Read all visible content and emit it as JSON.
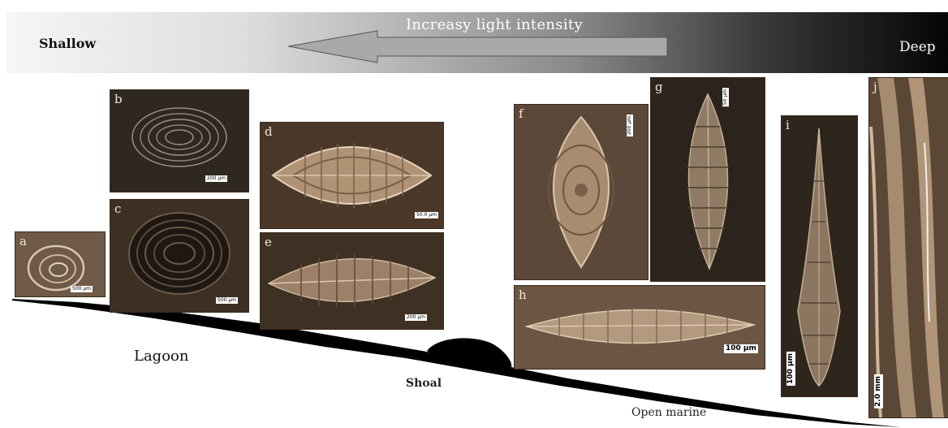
{
  "banner": {
    "left_label": "Shallow",
    "right_label": "Deep",
    "arrow_label": "Increasy light intensity"
  },
  "environments": {
    "lagoon": "Lagoon",
    "shoal": "Shoal",
    "open_marine": "Open marine"
  },
  "plates": [
    {
      "id": "a",
      "label": "a",
      "scale": "500 μm"
    },
    {
      "id": "b",
      "label": "b",
      "scale": "200 μm"
    },
    {
      "id": "c",
      "label": "c",
      "scale": "500 μm"
    },
    {
      "id": "d",
      "label": "d",
      "scale": "50.0 μm"
    },
    {
      "id": "e",
      "label": "e",
      "scale": "200 μm"
    },
    {
      "id": "f",
      "label": "f",
      "scale": "200 μm"
    },
    {
      "id": "g",
      "label": "g",
      "scale": "50 μm"
    },
    {
      "id": "h",
      "label": "h",
      "scale": "100 μm"
    },
    {
      "id": "i",
      "label": "i",
      "scale": "100 μm"
    },
    {
      "id": "j",
      "label": "j",
      "scale": "2.0 mm"
    }
  ],
  "colors": {
    "plate_matrix": "#4a3526",
    "plate_shell": "#b89a7c",
    "profile": "#000000"
  }
}
